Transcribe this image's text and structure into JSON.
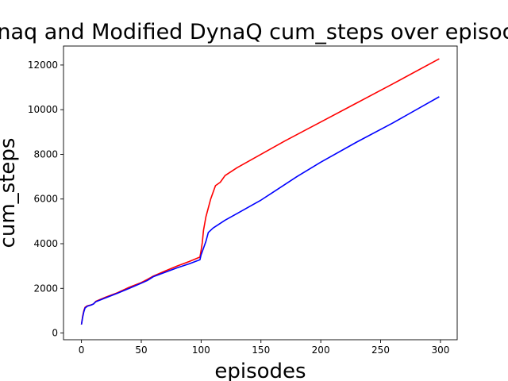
{
  "chart_data": {
    "type": "line",
    "title": "Dynaq and Modified DynaQ cum_steps over episodes",
    "xlabel": "episodes",
    "ylabel": "cum_steps",
    "xlim": [
      -15,
      314
    ],
    "ylim": [
      -300,
      12850
    ],
    "xticks": [
      0,
      50,
      100,
      150,
      200,
      250,
      300
    ],
    "yticks": [
      0,
      2000,
      4000,
      6000,
      8000,
      10000,
      12000
    ],
    "grid": false,
    "legend": "none",
    "series": [
      {
        "color": "#ff0000",
        "points": [
          [
            0,
            380
          ],
          [
            1,
            750
          ],
          [
            2,
            1000
          ],
          [
            3,
            1150
          ],
          [
            5,
            1220
          ],
          [
            8,
            1260
          ],
          [
            10,
            1300
          ],
          [
            12,
            1420
          ],
          [
            20,
            1600
          ],
          [
            30,
            1800
          ],
          [
            40,
            2050
          ],
          [
            50,
            2260
          ],
          [
            55,
            2400
          ],
          [
            60,
            2550
          ],
          [
            70,
            2780
          ],
          [
            80,
            3000
          ],
          [
            90,
            3200
          ],
          [
            99,
            3400
          ],
          [
            100,
            3700
          ],
          [
            101,
            4050
          ],
          [
            102,
            4600
          ],
          [
            104,
            5200
          ],
          [
            106,
            5600
          ],
          [
            108,
            6000
          ],
          [
            110,
            6300
          ],
          [
            112,
            6600
          ],
          [
            116,
            6750
          ],
          [
            120,
            7050
          ],
          [
            130,
            7400
          ],
          [
            150,
            8000
          ],
          [
            170,
            8600
          ],
          [
            200,
            9450
          ],
          [
            230,
            10300
          ],
          [
            260,
            11150
          ],
          [
            299,
            12280
          ]
        ]
      },
      {
        "color": "#0000ff",
        "points": [
          [
            0,
            380
          ],
          [
            1,
            700
          ],
          [
            2,
            950
          ],
          [
            3,
            1120
          ],
          [
            5,
            1200
          ],
          [
            8,
            1250
          ],
          [
            10,
            1300
          ],
          [
            12,
            1400
          ],
          [
            20,
            1570
          ],
          [
            30,
            1780
          ],
          [
            40,
            2000
          ],
          [
            50,
            2230
          ],
          [
            55,
            2350
          ],
          [
            60,
            2520
          ],
          [
            70,
            2720
          ],
          [
            80,
            2920
          ],
          [
            90,
            3100
          ],
          [
            99,
            3280
          ],
          [
            100,
            3500
          ],
          [
            102,
            3800
          ],
          [
            104,
            4100
          ],
          [
            106,
            4500
          ],
          [
            110,
            4700
          ],
          [
            120,
            5050
          ],
          [
            130,
            5350
          ],
          [
            150,
            5950
          ],
          [
            160,
            6300
          ],
          [
            170,
            6650
          ],
          [
            180,
            7000
          ],
          [
            200,
            7650
          ],
          [
            230,
            8550
          ],
          [
            260,
            9400
          ],
          [
            299,
            10580
          ]
        ]
      }
    ]
  }
}
